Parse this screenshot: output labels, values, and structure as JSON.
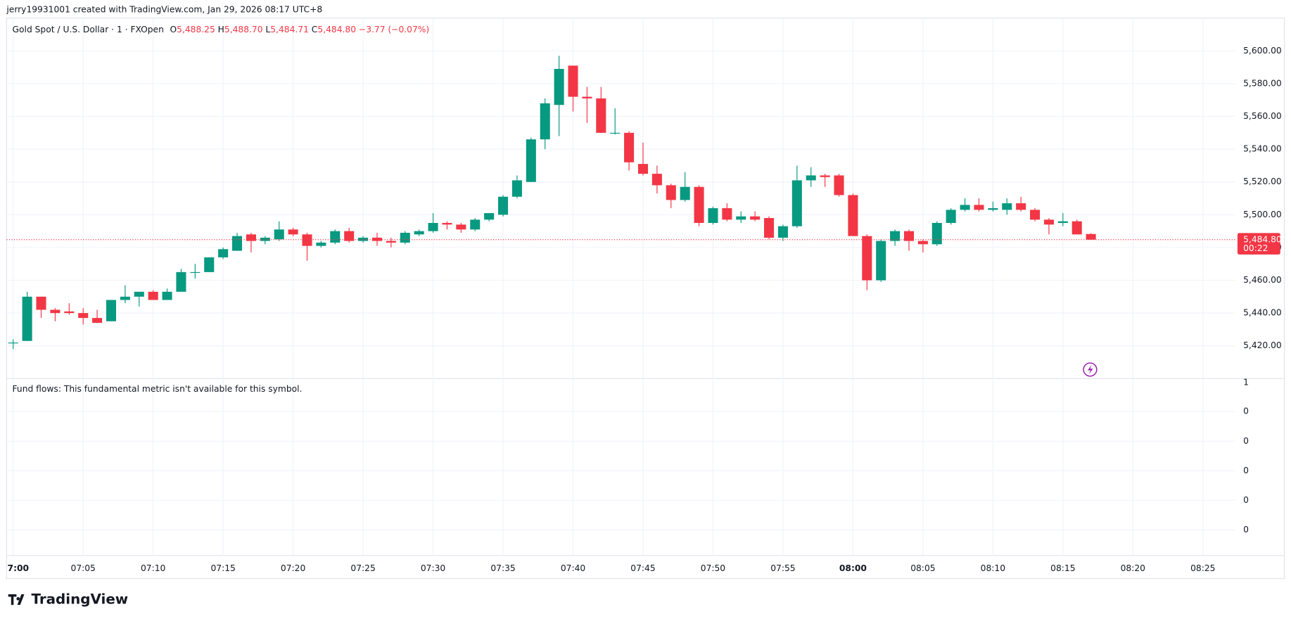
{
  "header": "jerry19931001 created with TradingView.com, Jan 29, 2026 08:17 UTC+8",
  "logo": "TradingView",
  "chart_data": {
    "type": "candlestick",
    "symbol": "Gold Spot / U.S. Dollar · 1 · FXOpen",
    "ohlc_legend": {
      "o_label": "O",
      "o": "5,488.25",
      "h_label": "H",
      "h": "5,488.70",
      "l_label": "L",
      "l": "5,484.71",
      "c_label": "C",
      "c": "5,484.80",
      "change": "−3.77 (−0.07%)"
    },
    "up_color": "#089981",
    "down_color": "#f23645",
    "grid": true,
    "categories": [
      "7:00",
      null,
      null,
      null,
      null,
      "07:05",
      null,
      null,
      null,
      null,
      "07:10",
      null,
      null,
      null,
      null,
      "07:15",
      null,
      null,
      null,
      null,
      "07:20",
      null,
      null,
      null,
      null,
      "07:25",
      null,
      null,
      null,
      null,
      "07:30",
      null,
      null,
      null,
      null,
      "07:35",
      null,
      null,
      null,
      null,
      "07:40",
      null,
      null,
      null,
      null,
      "07:45",
      null,
      null,
      null,
      null,
      "07:50",
      null,
      null,
      null,
      null,
      "07:55",
      null,
      null,
      null,
      null,
      "08:00",
      null,
      null,
      null,
      null,
      "08:05",
      null,
      null,
      null,
      null,
      "08:10",
      null,
      null,
      null,
      null,
      "08:15",
      null,
      null,
      null,
      null,
      "08:20",
      null,
      null,
      null,
      null,
      "08:25"
    ],
    "open": [
      5422,
      5423,
      5450,
      5442,
      5441,
      5440,
      5437,
      5435,
      5448,
      5450,
      5453,
      5448,
      5453,
      5465,
      5465,
      5474,
      5478,
      5488,
      5484,
      5485,
      5491,
      5488,
      5481,
      5483,
      5490,
      5484,
      5486,
      5484,
      5483,
      5488,
      5490,
      5495,
      5494,
      5491,
      5497,
      5500,
      5511,
      5520,
      5546,
      5567,
      5591,
      5572,
      5571,
      5550,
      5550,
      5531,
      5525,
      5518,
      5509,
      5517,
      5495,
      5504,
      5497,
      5499,
      5498,
      5486,
      5493,
      5521,
      5524,
      5524,
      5512,
      5487,
      5460,
      5484,
      5490,
      5484,
      5482,
      5495,
      5503,
      5506,
      5503,
      5503,
      5507,
      5503,
      5497,
      5495,
      5496,
      5488.25,
      null,
      null,
      null,
      null,
      null,
      null,
      null,
      null
    ],
    "high": [
      5424,
      5453,
      5450,
      5443,
      5446,
      5443,
      5442,
      5448,
      5457,
      5453,
      5454,
      5455,
      5467,
      5470,
      5474,
      5480,
      5489,
      5489,
      5487,
      5496,
      5492,
      5489,
      5484,
      5491,
      5492,
      5487,
      5489,
      5486,
      5490,
      5491,
      5501,
      5496,
      5495,
      5498,
      5501,
      5512,
      5524,
      5547,
      5571,
      5597,
      5591,
      5578,
      5578,
      5565,
      5551,
      5544,
      5530,
      5519,
      5526,
      5518,
      5505,
      5507,
      5502,
      5502,
      5499,
      5494,
      5530,
      5529,
      5525,
      5525,
      5513,
      5488,
      5485,
      5491,
      5491,
      5485,
      5496,
      5504,
      5510,
      5510,
      5508,
      5510,
      5511,
      5504,
      5498,
      5501,
      5497,
      5488.7,
      null,
      null,
      null,
      null,
      null,
      null,
      null,
      null
    ],
    "low": [
      5418,
      5423,
      5437,
      5435,
      5439,
      5433,
      5434,
      5435,
      5446,
      5444,
      5448,
      5448,
      5453,
      5461,
      5465,
      5473,
      5478,
      5477,
      5482,
      5484,
      5487,
      5472,
      5480,
      5482,
      5483,
      5483,
      5481,
      5480,
      5482,
      5487,
      5489,
      5491,
      5489,
      5490,
      5496,
      5499,
      5510,
      5520,
      5540,
      5548,
      5563,
      5556,
      5550,
      5549,
      5527,
      5524,
      5513,
      5504,
      5508,
      5493,
      5494,
      5496,
      5495,
      5496,
      5485,
      5484,
      5492,
      5517,
      5517,
      5511,
      5487,
      5454,
      5459,
      5481,
      5478,
      5477,
      5481,
      5494,
      5502,
      5502,
      5502,
      5500,
      5502,
      5496,
      5488,
      5493,
      5488,
      5484.71,
      null,
      null,
      null,
      null,
      null,
      null,
      null,
      null
    ],
    "close": [
      5422,
      5450,
      5442,
      5440,
      5440,
      5437,
      5434,
      5448,
      5450,
      5453,
      5448,
      5453,
      5465,
      5465,
      5474,
      5479,
      5487,
      5484,
      5486,
      5491,
      5488,
      5481,
      5483,
      5490,
      5484,
      5486,
      5484,
      5483,
      5489,
      5490,
      5495,
      5494,
      5491,
      5497,
      5501,
      5511,
      5521,
      5546,
      5568,
      5589,
      5572,
      5571,
      5550,
      5550,
      5532,
      5525,
      5518,
      5509,
      5517,
      5495,
      5504,
      5497,
      5499,
      5497,
      5486,
      5493,
      5521,
      5524,
      5523,
      5512,
      5487,
      5460,
      5484,
      5490,
      5484,
      5482,
      5495,
      5503,
      5506,
      5503,
      5504,
      5507,
      5503,
      5497,
      5494,
      5496,
      5488,
      5484.8,
      null,
      null,
      null,
      null,
      null,
      null,
      null,
      null
    ],
    "ylim": [
      5400,
      5620
    ],
    "yticks": [
      {
        "value": 5420,
        "label": "5,420.00"
      },
      {
        "value": 5440,
        "label": "5,440.00"
      },
      {
        "value": 5460,
        "label": "5,460.00"
      },
      {
        "value": 5480,
        "label": "5,480.00"
      },
      {
        "value": 5500,
        "label": "5,500.00"
      },
      {
        "value": 5520,
        "label": "5,520.00"
      },
      {
        "value": 5540,
        "label": "5,540.00"
      },
      {
        "value": 5560,
        "label": "5,560.00"
      },
      {
        "value": 5580,
        "label": "5,580.00"
      },
      {
        "value": 5600,
        "label": "5,600.00"
      }
    ],
    "last_price": {
      "value": 5484.8,
      "label": "5,484.80",
      "countdown": "00:22"
    },
    "lower_pane": {
      "note": "Fund flows: This fundamental metric isn't available for this symbol.",
      "axis_labels": [
        "1",
        "0",
        "0",
        "0",
        "0",
        "0"
      ]
    }
  }
}
